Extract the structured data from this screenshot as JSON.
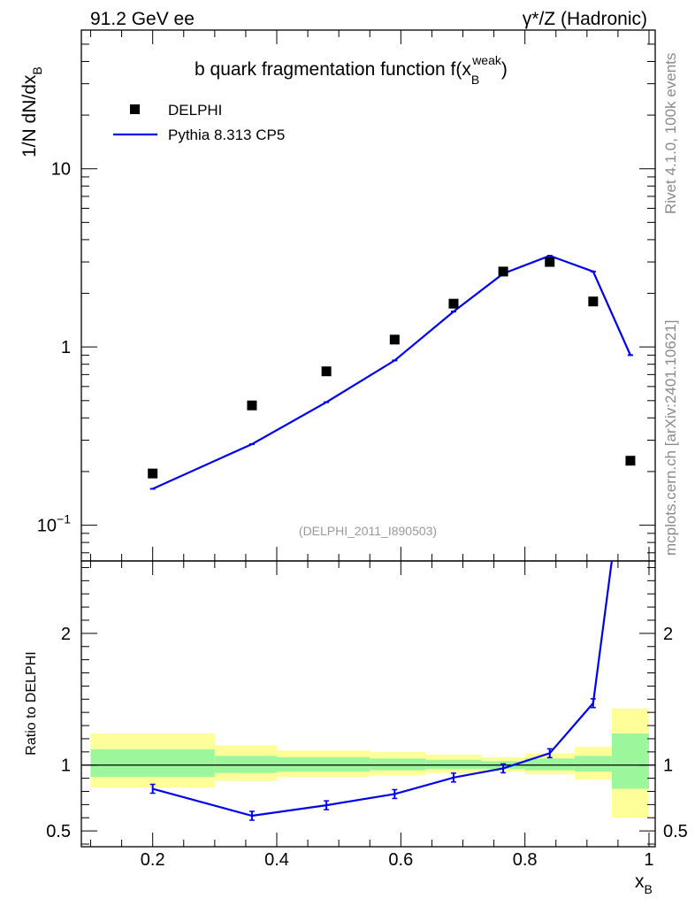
{
  "header": {
    "energy": "91.2 GeV ee",
    "process": "γ*/Z (Hadronic)"
  },
  "side_text": {
    "rivet": "Rivet 4.1.0,  100k events",
    "site": "mcplots.cern.ch [arXiv:2401.10621]"
  },
  "colors": {
    "mc": "#0000ee",
    "band_inner": "#9cf79c",
    "band_outer": "#ffff99",
    "data_marker": "#000000"
  },
  "chart_data": {
    "type": "scatter",
    "title": "b quark fragmentation function f(x",
    "title_sub": "B",
    "title_sup": "weak",
    "title_close": ")",
    "watermark": "(DELPHI_2011_I890503)",
    "legend": [
      {
        "name": "DELPHI",
        "kind": "marker"
      },
      {
        "name": "Pythia 8.313 CP5",
        "kind": "line"
      }
    ],
    "xlim": [
      0.085,
      1.01
    ],
    "xlabel": "x",
    "xlabel_sub": "B",
    "xticks": [
      "0.2",
      "0.4",
      "0.6",
      "0.8",
      "1"
    ],
    "main": {
      "yscale": "log",
      "ylim": [
        0.063,
        60
      ],
      "ylabel": "1/N  dN/dx",
      "ylabel_sub": "B",
      "yticks": [
        {
          "value": 0.1,
          "base": "10",
          "exp": "−1"
        },
        {
          "value": 1,
          "base": "1",
          "exp": ""
        },
        {
          "value": 10,
          "base": "10",
          "exp": ""
        }
      ],
      "data": {
        "name": "DELPHI",
        "x": [
          0.2,
          0.36,
          0.48,
          0.59,
          0.685,
          0.765,
          0.84,
          0.91,
          0.97
        ],
        "y": [
          0.195,
          0.47,
          0.73,
          1.1,
          1.75,
          2.65,
          3.0,
          1.8,
          0.23
        ]
      },
      "mc": {
        "name": "Pythia 8.313 CP5",
        "x": [
          0.2,
          0.36,
          0.48,
          0.59,
          0.685,
          0.765,
          0.84,
          0.91,
          0.97
        ],
        "y": [
          0.16,
          0.285,
          0.49,
          0.84,
          1.58,
          2.58,
          3.25,
          2.65,
          0.9
        ]
      }
    },
    "ratio": {
      "ylabel": "Ratio to DELPHI",
      "ylim": [
        0.38,
        2.55
      ],
      "yticks": [
        "0.5",
        "1",
        "2"
      ],
      "ytick_values": [
        0.5,
        1,
        2
      ],
      "bins": [
        {
          "lo": 0.1,
          "hi": 0.3,
          "inner": [
            0.91,
            1.12
          ],
          "outer": [
            0.83,
            1.24
          ]
        },
        {
          "lo": 0.3,
          "hi": 0.4,
          "inner": [
            0.94,
            1.07
          ],
          "outer": [
            0.88,
            1.15
          ]
        },
        {
          "lo": 0.4,
          "hi": 0.55,
          "inner": [
            0.95,
            1.06
          ],
          "outer": [
            0.91,
            1.11
          ]
        },
        {
          "lo": 0.55,
          "hi": 0.64,
          "inner": [
            0.96,
            1.05
          ],
          "outer": [
            0.92,
            1.1
          ]
        },
        {
          "lo": 0.64,
          "hi": 0.73,
          "inner": [
            0.97,
            1.04
          ],
          "outer": [
            0.94,
            1.08
          ]
        },
        {
          "lo": 0.73,
          "hi": 0.8,
          "inner": [
            0.97,
            1.03
          ],
          "outer": [
            0.95,
            1.06
          ]
        },
        {
          "lo": 0.8,
          "hi": 0.88,
          "inner": [
            0.96,
            1.05
          ],
          "outer": [
            0.93,
            1.09
          ]
        },
        {
          "lo": 0.88,
          "hi": 0.94,
          "inner": [
            0.95,
            1.07
          ],
          "outer": [
            0.89,
            1.14
          ]
        },
        {
          "lo": 0.94,
          "hi": 1.0,
          "inner": [
            0.82,
            1.24
          ],
          "outer": [
            0.6,
            1.43
          ]
        }
      ],
      "mc": {
        "x": [
          0.2,
          0.36,
          0.48,
          0.59,
          0.685,
          0.765,
          0.84,
          0.91,
          0.94
        ],
        "y": [
          0.82,
          0.615,
          0.695,
          0.78,
          0.905,
          0.975,
          1.09,
          1.47,
          2.55
        ]
      }
    }
  }
}
